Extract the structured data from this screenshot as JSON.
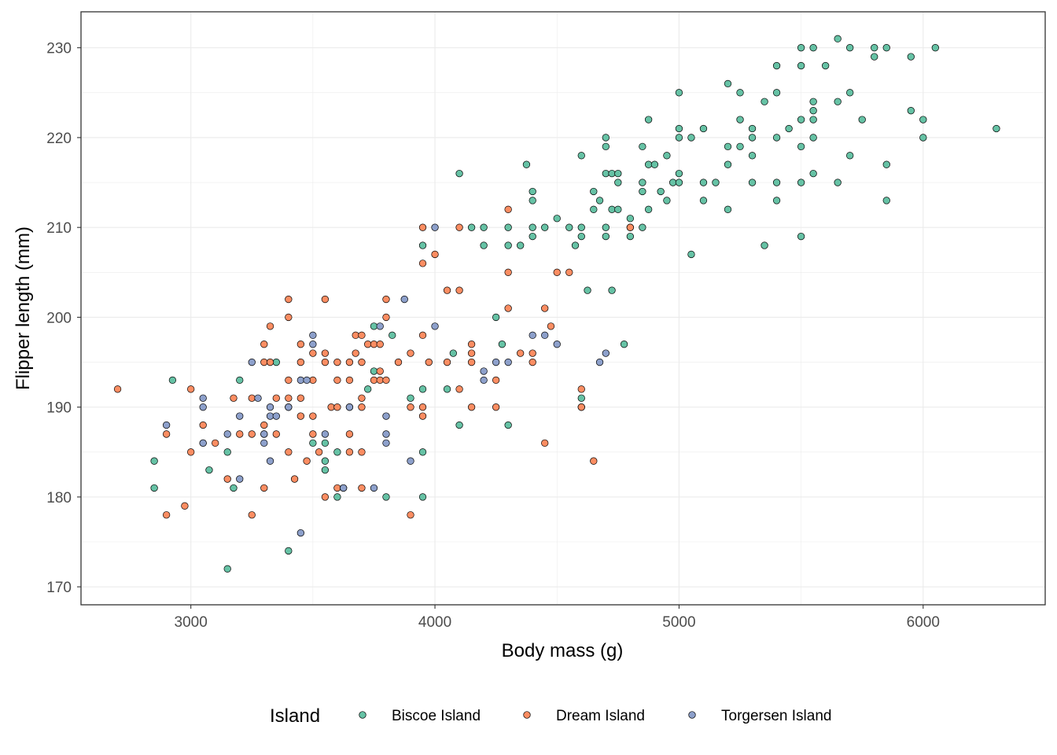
{
  "chart_data": {
    "type": "scatter",
    "title": "",
    "xlabel": "Body mass (g)",
    "ylabel": "Flipper length (mm)",
    "xlim": [
      2550,
      6500
    ],
    "ylim": [
      168,
      234
    ],
    "xticks": [
      3000,
      4000,
      5000,
      6000
    ],
    "yticks": [
      170,
      180,
      190,
      200,
      210,
      220,
      230
    ],
    "xtick_labels": [
      "3000",
      "4000",
      "5000",
      "6000"
    ],
    "ytick_labels": [
      "170",
      "180",
      "190",
      "200",
      "210",
      "220",
      "230"
    ],
    "grid": true,
    "legend": {
      "title": "Island",
      "position": "bottom"
    },
    "series": [
      {
        "name": "Biscoe Island",
        "color": "#66C2A5",
        "points": [
          [
            2850,
            184
          ],
          [
            2850,
            181
          ],
          [
            2925,
            193
          ],
          [
            3075,
            183
          ],
          [
            3150,
            172
          ],
          [
            3150,
            185
          ],
          [
            3175,
            181
          ],
          [
            3200,
            193
          ],
          [
            3350,
            195
          ],
          [
            3400,
            174
          ],
          [
            3500,
            186
          ],
          [
            3550,
            183
          ],
          [
            3550,
            184
          ],
          [
            3550,
            186
          ],
          [
            3600,
            185
          ],
          [
            3600,
            180
          ],
          [
            3725,
            192
          ],
          [
            3750,
            194
          ],
          [
            3750,
            199
          ],
          [
            3800,
            180
          ],
          [
            3825,
            198
          ],
          [
            3900,
            191
          ],
          [
            3950,
            192
          ],
          [
            3950,
            185
          ],
          [
            3950,
            180
          ],
          [
            3950,
            208
          ],
          [
            4050,
            192
          ],
          [
            4075,
            196
          ],
          [
            4100,
            188
          ],
          [
            4100,
            216
          ],
          [
            4150,
            210
          ],
          [
            4200,
            208
          ],
          [
            4200,
            210
          ],
          [
            4250,
            200
          ],
          [
            4275,
            197
          ],
          [
            4300,
            188
          ],
          [
            4300,
            208
          ],
          [
            4300,
            210
          ],
          [
            4350,
            208
          ],
          [
            4375,
            217
          ],
          [
            4400,
            214
          ],
          [
            4400,
            213
          ],
          [
            4400,
            210
          ],
          [
            4400,
            209
          ],
          [
            4450,
            210
          ],
          [
            4500,
            211
          ],
          [
            4550,
            210
          ],
          [
            4575,
            208
          ],
          [
            4600,
            218
          ],
          [
            4600,
            210
          ],
          [
            4600,
            209
          ],
          [
            4600,
            191
          ],
          [
            4600,
            190
          ],
          [
            4625,
            203
          ],
          [
            4650,
            212
          ],
          [
            4650,
            214
          ],
          [
            4675,
            213
          ],
          [
            4700,
            216
          ],
          [
            4700,
            219
          ],
          [
            4700,
            220
          ],
          [
            4700,
            210
          ],
          [
            4700,
            209
          ],
          [
            4725,
            216
          ],
          [
            4725,
            212
          ],
          [
            4725,
            203
          ],
          [
            4750,
            216
          ],
          [
            4750,
            215
          ],
          [
            4750,
            212
          ],
          [
            4775,
            197
          ],
          [
            4800,
            210
          ],
          [
            4800,
            209
          ],
          [
            4800,
            211
          ],
          [
            4850,
            219
          ],
          [
            4850,
            215
          ],
          [
            4850,
            214
          ],
          [
            4850,
            210
          ],
          [
            4875,
            212
          ],
          [
            4875,
            222
          ],
          [
            4875,
            217
          ],
          [
            4900,
            217
          ],
          [
            4925,
            214
          ],
          [
            4950,
            218
          ],
          [
            4950,
            213
          ],
          [
            4975,
            215
          ],
          [
            5000,
            225
          ],
          [
            5000,
            221
          ],
          [
            5000,
            220
          ],
          [
            5000,
            216
          ],
          [
            5000,
            215
          ],
          [
            5050,
            220
          ],
          [
            5050,
            207
          ],
          [
            5100,
            221
          ],
          [
            5100,
            215
          ],
          [
            5100,
            213
          ],
          [
            5150,
            215
          ],
          [
            5200,
            226
          ],
          [
            5200,
            219
          ],
          [
            5200,
            217
          ],
          [
            5200,
            212
          ],
          [
            5250,
            225
          ],
          [
            5250,
            222
          ],
          [
            5250,
            219
          ],
          [
            5300,
            221
          ],
          [
            5300,
            220
          ],
          [
            5300,
            218
          ],
          [
            5300,
            215
          ],
          [
            5350,
            224
          ],
          [
            5350,
            208
          ],
          [
            5400,
            228
          ],
          [
            5400,
            225
          ],
          [
            5400,
            220
          ],
          [
            5400,
            215
          ],
          [
            5400,
            213
          ],
          [
            5450,
            221
          ],
          [
            5500,
            230
          ],
          [
            5500,
            228
          ],
          [
            5500,
            222
          ],
          [
            5500,
            219
          ],
          [
            5500,
            215
          ],
          [
            5500,
            209
          ],
          [
            5550,
            230
          ],
          [
            5550,
            224
          ],
          [
            5550,
            223
          ],
          [
            5550,
            222
          ],
          [
            5550,
            220
          ],
          [
            5550,
            216
          ],
          [
            5600,
            228
          ],
          [
            5650,
            231
          ],
          [
            5650,
            224
          ],
          [
            5650,
            215
          ],
          [
            5700,
            230
          ],
          [
            5700,
            225
          ],
          [
            5700,
            218
          ],
          [
            5750,
            222
          ],
          [
            5800,
            230
          ],
          [
            5800,
            229
          ],
          [
            5850,
            230
          ],
          [
            5850,
            217
          ],
          [
            5850,
            213
          ],
          [
            5950,
            229
          ],
          [
            5950,
            223
          ],
          [
            6000,
            222
          ],
          [
            6000,
            220
          ],
          [
            6050,
            230
          ],
          [
            6300,
            221
          ]
        ]
      },
      {
        "name": "Dream Island",
        "color": "#FC8D62",
        "points": [
          [
            2700,
            192
          ],
          [
            2900,
            187
          ],
          [
            2900,
            178
          ],
          [
            2975,
            179
          ],
          [
            3000,
            192
          ],
          [
            3000,
            185
          ],
          [
            3050,
            188
          ],
          [
            3050,
            186
          ],
          [
            3100,
            186
          ],
          [
            3150,
            182
          ],
          [
            3175,
            191
          ],
          [
            3200,
            187
          ],
          [
            3250,
            191
          ],
          [
            3250,
            187
          ],
          [
            3250,
            178
          ],
          [
            3300,
            197
          ],
          [
            3300,
            195
          ],
          [
            3300,
            188
          ],
          [
            3300,
            187
          ],
          [
            3300,
            181
          ],
          [
            3325,
            199
          ],
          [
            3325,
            195
          ],
          [
            3350,
            191
          ],
          [
            3350,
            187
          ],
          [
            3400,
            202
          ],
          [
            3400,
            200
          ],
          [
            3400,
            193
          ],
          [
            3400,
            191
          ],
          [
            3400,
            190
          ],
          [
            3400,
            185
          ],
          [
            3425,
            182
          ],
          [
            3450,
            197
          ],
          [
            3450,
            195
          ],
          [
            3450,
            191
          ],
          [
            3450,
            189
          ],
          [
            3475,
            184
          ],
          [
            3500,
            196
          ],
          [
            3500,
            193
          ],
          [
            3500,
            189
          ],
          [
            3500,
            187
          ],
          [
            3525,
            185
          ],
          [
            3550,
            202
          ],
          [
            3550,
            196
          ],
          [
            3550,
            195
          ],
          [
            3550,
            180
          ],
          [
            3575,
            190
          ],
          [
            3600,
            195
          ],
          [
            3600,
            193
          ],
          [
            3600,
            190
          ],
          [
            3600,
            181
          ],
          [
            3625,
            181
          ],
          [
            3650,
            195
          ],
          [
            3650,
            193
          ],
          [
            3650,
            190
          ],
          [
            3650,
            187
          ],
          [
            3650,
            185
          ],
          [
            3675,
            196
          ],
          [
            3675,
            198
          ],
          [
            3700,
            198
          ],
          [
            3700,
            195
          ],
          [
            3700,
            191
          ],
          [
            3700,
            190
          ],
          [
            3700,
            185
          ],
          [
            3700,
            181
          ],
          [
            3725,
            197
          ],
          [
            3750,
            197
          ],
          [
            3750,
            193
          ],
          [
            3775,
            194
          ],
          [
            3775,
            197
          ],
          [
            3775,
            193
          ],
          [
            3800,
            202
          ],
          [
            3800,
            200
          ],
          [
            3800,
            193
          ],
          [
            3850,
            195
          ],
          [
            3900,
            196
          ],
          [
            3900,
            190
          ],
          [
            3900,
            178
          ],
          [
            3950,
            210
          ],
          [
            3950,
            206
          ],
          [
            3950,
            198
          ],
          [
            3950,
            190
          ],
          [
            3950,
            189
          ],
          [
            3975,
            195
          ],
          [
            4000,
            207
          ],
          [
            4050,
            203
          ],
          [
            4050,
            195
          ],
          [
            4100,
            210
          ],
          [
            4100,
            203
          ],
          [
            4100,
            192
          ],
          [
            4150,
            197
          ],
          [
            4150,
            196
          ],
          [
            4150,
            195
          ],
          [
            4150,
            190
          ],
          [
            4250,
            193
          ],
          [
            4250,
            190
          ],
          [
            4300,
            212
          ],
          [
            4300,
            205
          ],
          [
            4300,
            201
          ],
          [
            4350,
            196
          ],
          [
            4400,
            196
          ],
          [
            4400,
            195
          ],
          [
            4450,
            201
          ],
          [
            4450,
            186
          ],
          [
            4475,
            199
          ],
          [
            4500,
            205
          ],
          [
            4550,
            205
          ],
          [
            4600,
            192
          ],
          [
            4600,
            190
          ],
          [
            4650,
            184
          ],
          [
            4800,
            210
          ]
        ]
      },
      {
        "name": "Torgersen Island",
        "color": "#8DA0CB",
        "points": [
          [
            2900,
            188
          ],
          [
            3050,
            191
          ],
          [
            3050,
            190
          ],
          [
            3050,
            186
          ],
          [
            3150,
            187
          ],
          [
            3200,
            182
          ],
          [
            3200,
            189
          ],
          [
            3250,
            195
          ],
          [
            3275,
            191
          ],
          [
            3300,
            187
          ],
          [
            3300,
            186
          ],
          [
            3325,
            184
          ],
          [
            3325,
            190
          ],
          [
            3325,
            189
          ],
          [
            3350,
            189
          ],
          [
            3400,
            190
          ],
          [
            3450,
            193
          ],
          [
            3450,
            176
          ],
          [
            3475,
            193
          ],
          [
            3500,
            198
          ],
          [
            3500,
            197
          ],
          [
            3550,
            187
          ],
          [
            3625,
            181
          ],
          [
            3650,
            190
          ],
          [
            3750,
            181
          ],
          [
            3775,
            199
          ],
          [
            3800,
            189
          ],
          [
            3800,
            187
          ],
          [
            3800,
            186
          ],
          [
            3875,
            202
          ],
          [
            3900,
            184
          ],
          [
            4000,
            210
          ],
          [
            4000,
            199
          ],
          [
            4200,
            194
          ],
          [
            4200,
            193
          ],
          [
            4250,
            195
          ],
          [
            4300,
            195
          ],
          [
            4400,
            198
          ],
          [
            4450,
            198
          ],
          [
            4500,
            197
          ],
          [
            4675,
            195
          ],
          [
            4700,
            196
          ]
        ]
      }
    ]
  }
}
